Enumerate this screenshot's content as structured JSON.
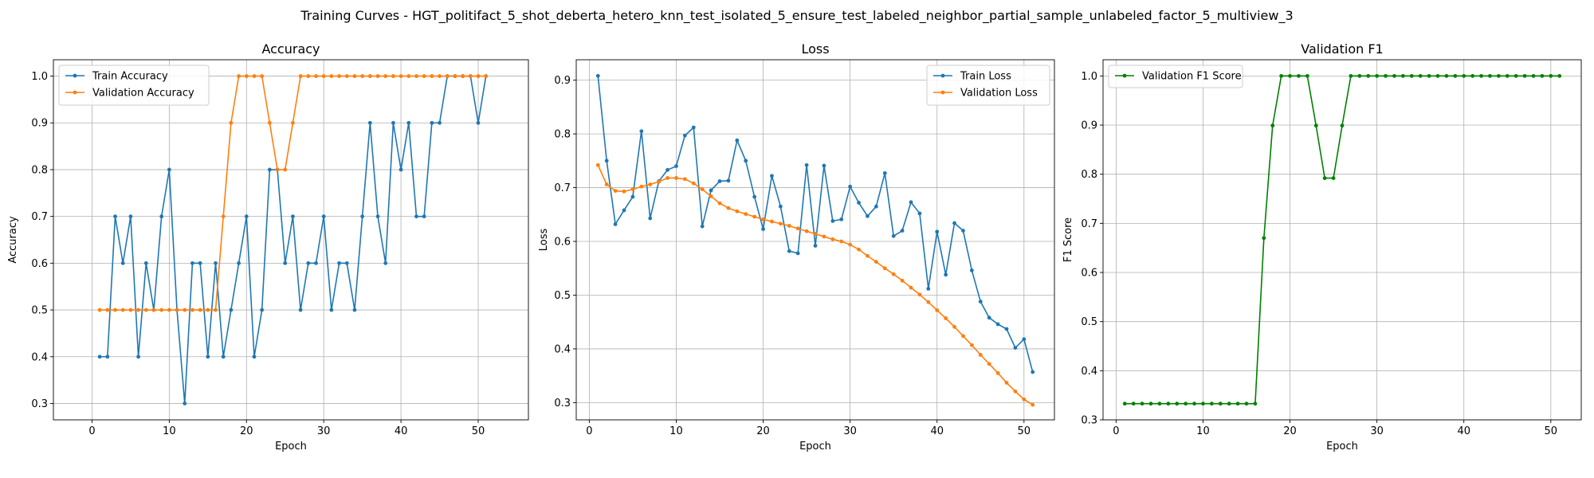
{
  "figure": {
    "suptitle": "Training Curves - HGT_politifact_5_shot_deberta_hetero_knn_test_isolated_5_ensure_test_labeled_neighbor_partial_sample_unlabeled_factor_5_multiview_3"
  },
  "chart_data": [
    {
      "type": "line",
      "title": "Accuracy",
      "xlabel": "Epoch",
      "ylabel": "Accuracy",
      "xlim": [
        -5,
        56.5
      ],
      "ylim": [
        0.265,
        1.035
      ],
      "xticks": [
        0,
        10,
        20,
        30,
        40,
        50
      ],
      "yticks": [
        0.3,
        0.4,
        0.5,
        0.6,
        0.7,
        0.8,
        0.9,
        1.0
      ],
      "ytick_labels": [
        "0.3",
        "0.4",
        "0.5",
        "0.6",
        "0.7",
        "0.8",
        "0.9",
        "1.0"
      ],
      "grid": true,
      "legend_position": "upper-left",
      "x": [
        1,
        2,
        3,
        4,
        5,
        6,
        7,
        8,
        9,
        10,
        11,
        12,
        13,
        14,
        15,
        16,
        17,
        18,
        19,
        20,
        21,
        22,
        23,
        24,
        25,
        26,
        27,
        28,
        29,
        30,
        31,
        32,
        33,
        34,
        35,
        36,
        37,
        38,
        39,
        40,
        41,
        42,
        43,
        44,
        45,
        46,
        47,
        48,
        49,
        50,
        51
      ],
      "series": [
        {
          "name": "Train Accuracy",
          "color": "#1f77b4",
          "values": [
            0.4,
            0.4,
            0.7,
            0.6,
            0.7,
            0.4,
            0.6,
            0.5,
            0.7,
            0.8,
            0.5,
            0.3,
            0.6,
            0.6,
            0.4,
            0.6,
            0.4,
            0.5,
            0.6,
            0.7,
            0.4,
            0.5,
            0.8,
            0.8,
            0.6,
            0.7,
            0.5,
            0.6,
            0.6,
            0.7,
            0.5,
            0.6,
            0.6,
            0.5,
            0.7,
            0.9,
            0.7,
            0.6,
            0.9,
            0.8,
            0.9,
            0.7,
            0.7,
            0.9,
            0.9,
            1.0,
            1.0,
            1.0,
            1.0,
            0.9,
            1.0
          ]
        },
        {
          "name": "Validation Accuracy",
          "color": "#ff7f0e",
          "values": [
            0.5,
            0.5,
            0.5,
            0.5,
            0.5,
            0.5,
            0.5,
            0.5,
            0.5,
            0.5,
            0.5,
            0.5,
            0.5,
            0.5,
            0.5,
            0.5,
            0.7,
            0.9,
            1.0,
            1.0,
            1.0,
            1.0,
            0.9,
            0.8,
            0.8,
            0.9,
            1.0,
            1.0,
            1.0,
            1.0,
            1.0,
            1.0,
            1.0,
            1.0,
            1.0,
            1.0,
            1.0,
            1.0,
            1.0,
            1.0,
            1.0,
            1.0,
            1.0,
            1.0,
            1.0,
            1.0,
            1.0,
            1.0,
            1.0,
            1.0,
            1.0
          ]
        }
      ]
    },
    {
      "type": "line",
      "title": "Loss",
      "xlabel": "Epoch",
      "ylabel": "Loss",
      "xlim": [
        -1.5,
        53.5
      ],
      "ylim": [
        0.268,
        0.938
      ],
      "xticks": [
        0,
        10,
        20,
        30,
        40,
        50
      ],
      "yticks": [
        0.3,
        0.4,
        0.5,
        0.6,
        0.7,
        0.8,
        0.9
      ],
      "ytick_labels": [
        "0.3",
        "0.4",
        "0.5",
        "0.6",
        "0.7",
        "0.8",
        "0.9"
      ],
      "grid": true,
      "legend_position": "upper-right",
      "x": [
        1,
        2,
        3,
        4,
        5,
        6,
        7,
        8,
        9,
        10,
        11,
        12,
        13,
        14,
        15,
        16,
        17,
        18,
        19,
        20,
        21,
        22,
        23,
        24,
        25,
        26,
        27,
        28,
        29,
        30,
        31,
        32,
        33,
        34,
        35,
        36,
        37,
        38,
        39,
        40,
        41,
        42,
        43,
        44,
        45,
        46,
        47,
        48,
        49,
        50,
        51
      ],
      "series": [
        {
          "name": "Train Loss",
          "color": "#1f77b4",
          "values": [
            0.908,
            0.75,
            0.632,
            0.658,
            0.683,
            0.805,
            0.643,
            0.712,
            0.733,
            0.74,
            0.797,
            0.812,
            0.628,
            0.695,
            0.712,
            0.713,
            0.788,
            0.75,
            0.683,
            0.623,
            0.722,
            0.665,
            0.582,
            0.578,
            0.742,
            0.592,
            0.741,
            0.638,
            0.641,
            0.702,
            0.672,
            0.647,
            0.665,
            0.727,
            0.61,
            0.62,
            0.673,
            0.652,
            0.512,
            0.618,
            0.538,
            0.634,
            0.62,
            0.546,
            0.488,
            0.458,
            0.446,
            0.437,
            0.402,
            0.418,
            0.357
          ]
        },
        {
          "name": "Validation Loss",
          "color": "#ff7f0e",
          "values": [
            0.742,
            0.706,
            0.694,
            0.693,
            0.697,
            0.702,
            0.706,
            0.711,
            0.718,
            0.718,
            0.716,
            0.708,
            0.697,
            0.684,
            0.671,
            0.662,
            0.656,
            0.651,
            0.646,
            0.641,
            0.637,
            0.633,
            0.629,
            0.624,
            0.619,
            0.614,
            0.609,
            0.604,
            0.6,
            0.594,
            0.585,
            0.573,
            0.562,
            0.55,
            0.539,
            0.527,
            0.514,
            0.501,
            0.487,
            0.472,
            0.457,
            0.441,
            0.424,
            0.407,
            0.389,
            0.372,
            0.355,
            0.337,
            0.321,
            0.306,
            0.296
          ]
        }
      ]
    },
    {
      "type": "line",
      "title": "Validation F1",
      "xlabel": "Epoch",
      "ylabel": "F1 Score",
      "xlim": [
        -1.5,
        53.5
      ],
      "ylim": [
        0.3,
        1.033
      ],
      "xticks": [
        0,
        10,
        20,
        30,
        40,
        50
      ],
      "yticks": [
        0.3,
        0.4,
        0.5,
        0.6,
        0.7,
        0.8,
        0.9,
        1.0
      ],
      "ytick_labels": [
        "0.3",
        "0.4",
        "0.5",
        "0.6",
        "0.7",
        "0.8",
        "0.9",
        "1.0"
      ],
      "grid": true,
      "legend_position": "upper-left",
      "x": [
        1,
        2,
        3,
        4,
        5,
        6,
        7,
        8,
        9,
        10,
        11,
        12,
        13,
        14,
        15,
        16,
        17,
        18,
        19,
        20,
        21,
        22,
        23,
        24,
        25,
        26,
        27,
        28,
        29,
        30,
        31,
        32,
        33,
        34,
        35,
        36,
        37,
        38,
        39,
        40,
        41,
        42,
        43,
        44,
        45,
        46,
        47,
        48,
        49,
        50,
        51
      ],
      "series": [
        {
          "name": "Validation F1 Score",
          "color": "#008000",
          "values": [
            0.333,
            0.333,
            0.333,
            0.333,
            0.333,
            0.333,
            0.333,
            0.333,
            0.333,
            0.333,
            0.333,
            0.333,
            0.333,
            0.333,
            0.333,
            0.333,
            0.67,
            0.899,
            1.0,
            1.0,
            1.0,
            1.0,
            0.899,
            0.792,
            0.792,
            0.899,
            1.0,
            1.0,
            1.0,
            1.0,
            1.0,
            1.0,
            1.0,
            1.0,
            1.0,
            1.0,
            1.0,
            1.0,
            1.0,
            1.0,
            1.0,
            1.0,
            1.0,
            1.0,
            1.0,
            1.0,
            1.0,
            1.0,
            1.0,
            1.0,
            1.0
          ]
        }
      ]
    }
  ]
}
